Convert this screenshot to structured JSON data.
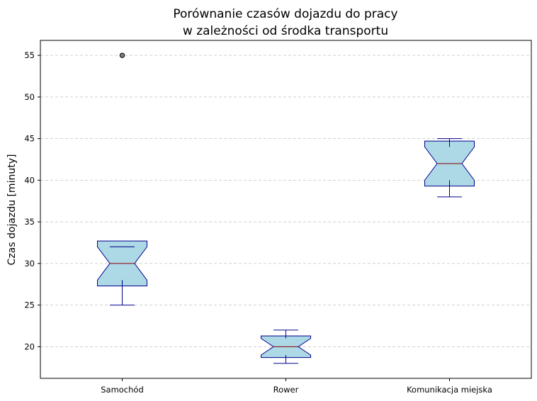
{
  "chart_data": {
    "type": "boxplot",
    "title": "Porównanie czasów dojazdu do pracy\nw zależności od środka transportu",
    "xlabel": "",
    "ylabel": "Czas dojazdu [minuty]",
    "ylim": [
      16.2,
      56.8
    ],
    "yticks": [
      20,
      25,
      30,
      35,
      40,
      45,
      50,
      55
    ],
    "grid": "horizontal dashed",
    "notched": true,
    "categories": [
      "Samochód",
      "Rower",
      "Komunikacja miejska"
    ],
    "boxes": [
      {
        "min": 25,
        "q1": 28,
        "median": 30,
        "q3": 32,
        "max": 32,
        "notch_low": 27.3,
        "notch_high": 32.7,
        "outliers": [
          55
        ]
      },
      {
        "min": 18,
        "q1": 19,
        "median": 20,
        "q3": 21,
        "max": 22,
        "notch_low": 18.7,
        "notch_high": 21.3,
        "outliers": []
      },
      {
        "min": 38,
        "q1": 40,
        "median": 42,
        "q3": 44,
        "max": 45,
        "notch_low": 39.3,
        "notch_high": 44.7,
        "outliers": []
      }
    ],
    "colors": {
      "box_fill": "#add8e6",
      "box_edge": "#00008b",
      "median": "#8b0000",
      "outlier_fill": "#808080",
      "grid": "#c0c0c0"
    }
  }
}
